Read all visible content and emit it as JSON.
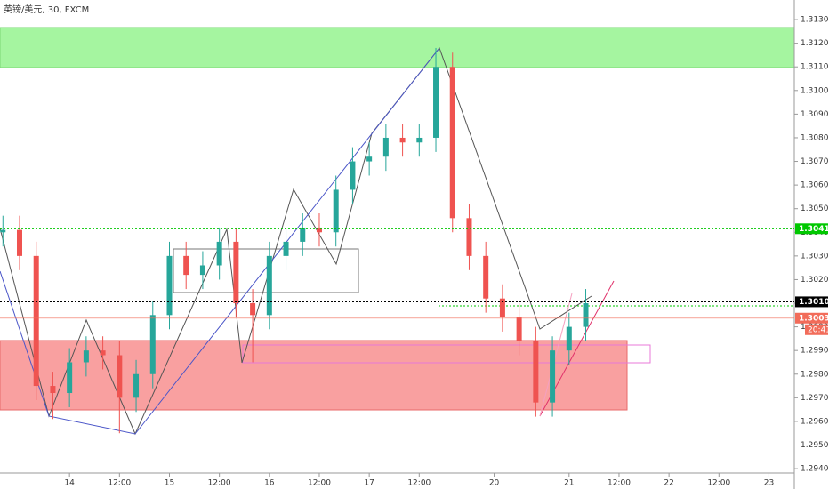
{
  "chart_data": {
    "type": "candlestick",
    "title": "英镑/美元, 30, FXCM",
    "x": [
      -16,
      -12,
      -8,
      -4,
      0,
      4,
      8,
      12,
      16,
      20,
      24,
      28,
      32,
      36,
      40,
      44,
      48,
      52,
      56,
      60,
      64,
      68,
      72,
      76,
      80,
      84,
      88,
      92,
      96,
      100,
      104,
      108,
      112,
      116,
      120,
      124
    ],
    "open": [
      1.304,
      1.3041,
      1.303,
      1.2975,
      1.2972,
      1.2985,
      1.299,
      1.2988,
      1.297,
      1.298,
      1.3005,
      1.303,
      1.3022,
      1.3026,
      1.3036,
      1.301,
      1.3005,
      1.303,
      1.3036,
      1.3042,
      1.304,
      1.3058,
      1.307,
      1.3072,
      1.308,
      1.3078,
      1.308,
      1.311,
      1.3046,
      1.303,
      1.3012,
      1.3004,
      1.2994,
      1.2968,
      1.299,
      1.3
    ],
    "high": [
      1.3047,
      1.3047,
      1.3036,
      1.2981,
      1.2991,
      1.2996,
      1.2996,
      1.2994,
      1.2986,
      1.3011,
      1.3036,
      1.3036,
      1.3032,
      1.3042,
      1.3042,
      1.3016,
      1.3036,
      1.3042,
      1.3048,
      1.3048,
      1.3064,
      1.3076,
      1.3078,
      1.3086,
      1.3086,
      1.3086,
      1.3118,
      1.3116,
      1.3052,
      1.3036,
      1.3018,
      1.301,
      1.3,
      1.2996,
      1.3006,
      1.3016
    ],
    "low": [
      1.3034,
      1.3024,
      1.2969,
      1.2961,
      1.2966,
      1.2979,
      1.2982,
      1.2955,
      1.2964,
      1.2974,
      1.2999,
      1.3016,
      1.3016,
      1.302,
      1.3004,
      1.2985,
      1.2999,
      1.3024,
      1.303,
      1.3034,
      1.3034,
      1.3052,
      1.3064,
      1.3066,
      1.3072,
      1.3072,
      1.3074,
      1.304,
      1.3024,
      1.3006,
      1.2998,
      1.2988,
      1.2962,
      1.2962,
      1.2984,
      1.2994
    ],
    "close": [
      1.3041,
      1.303,
      1.2975,
      1.2972,
      1.2985,
      1.299,
      1.2988,
      1.297,
      1.298,
      1.3005,
      1.303,
      1.3022,
      1.3026,
      1.3036,
      1.301,
      1.3005,
      1.303,
      1.3036,
      1.3042,
      1.304,
      1.3058,
      1.307,
      1.3072,
      1.308,
      1.3078,
      1.308,
      1.311,
      1.3046,
      1.303,
      1.3012,
      1.3004,
      1.2994,
      1.2968,
      1.299,
      1.3,
      1.301
    ],
    "up_color": "#26a69a",
    "down_color": "#ef5350",
    "xlim": [
      -16.7,
      174.1
    ],
    "xticks": [
      {
        "value": 0,
        "label": "14"
      },
      {
        "value": 12,
        "label": "12:00"
      },
      {
        "value": 24,
        "label": "15"
      },
      {
        "value": 36,
        "label": "12:00"
      },
      {
        "value": 48,
        "label": "16"
      },
      {
        "value": 60,
        "label": "12:00"
      },
      {
        "value": 72,
        "label": "17"
      },
      {
        "value": 84,
        "label": "12:00"
      },
      {
        "value": 102,
        "label": "20"
      },
      {
        "value": 120,
        "label": "21"
      },
      {
        "value": 132,
        "label": "12:00"
      },
      {
        "value": 144,
        "label": "22"
      },
      {
        "value": 156,
        "label": "12:00"
      },
      {
        "value": 168,
        "label": "23"
      }
    ],
    "ylim": [
      1.29389,
      1.31383
    ],
    "yticks": [
      {
        "value": 1.294,
        "label": "1.29400"
      },
      {
        "value": 1.295,
        "label": "1.29500"
      },
      {
        "value": 1.296,
        "label": "1.29600"
      },
      {
        "value": 1.297,
        "label": "1.29700"
      },
      {
        "value": 1.298,
        "label": "1.29800"
      },
      {
        "value": 1.299,
        "label": "1.29900"
      },
      {
        "value": 1.3,
        "label": "1.30000"
      },
      {
        "value": 1.301,
        "label": "1.30100"
      },
      {
        "value": 1.302,
        "label": "1.30200"
      },
      {
        "value": 1.303,
        "label": "1.30300"
      },
      {
        "value": 1.304,
        "label": "1.30400"
      },
      {
        "value": 1.305,
        "label": "1.30500"
      },
      {
        "value": 1.306,
        "label": "1.30600"
      },
      {
        "value": 1.307,
        "label": "1.30700"
      },
      {
        "value": 1.308,
        "label": "1.30800"
      },
      {
        "value": 1.309,
        "label": "1.30900"
      },
      {
        "value": 1.31,
        "label": "1.31000"
      },
      {
        "value": 1.311,
        "label": "1.31100"
      },
      {
        "value": 1.312,
        "label": "1.31200"
      },
      {
        "value": 1.313,
        "label": "1.31300"
      }
    ],
    "levels": [
      {
        "value": 1.30415,
        "color": "#00c800"
      },
      {
        "value": 1.30106,
        "color": "#000000"
      },
      {
        "value": 1.30037,
        "color": "#f26c5a"
      }
    ],
    "countdown": "20:41"
  }
}
